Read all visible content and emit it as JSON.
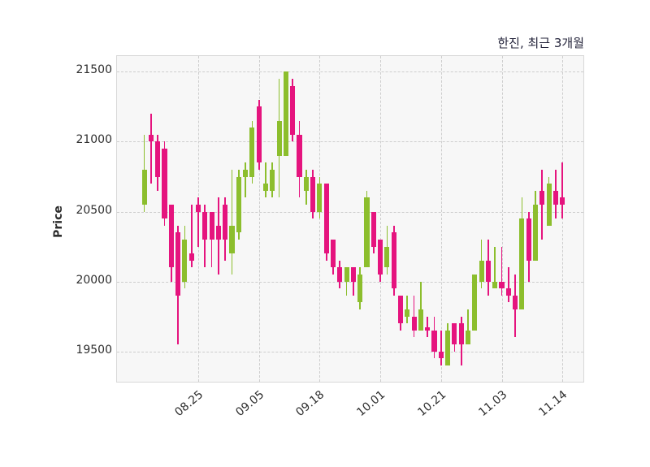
{
  "title": "한진, 최근 3개월",
  "chart_data": {
    "type": "candlestick",
    "title": "한진, 최근 3개월",
    "stock_name": "한진",
    "period_label": "최근 3개월",
    "ylabel": "Price",
    "yticks": [
      21500,
      21000,
      20500,
      20000,
      19500
    ],
    "ylim": [
      19283,
      21613
    ],
    "xticklabels": [
      "08.25",
      "09.05",
      "09.18",
      "10.01",
      "10.21",
      "11.03",
      "11.14"
    ],
    "xtick_indices": [
      8,
      17,
      26,
      35,
      44,
      53,
      62
    ],
    "grid": true,
    "legend": "none",
    "up_color": "#8cbe2d",
    "down_color": "#e5147e",
    "candles_ohlc": [
      [
        20550,
        21050,
        20500,
        20800
      ],
      [
        21050,
        21200,
        20700,
        21000
      ],
      [
        21000,
        21050,
        20650,
        20750
      ],
      [
        20950,
        21000,
        20400,
        20450
      ],
      [
        20550,
        20550,
        20000,
        20100
      ],
      [
        20350,
        20400,
        19550,
        19900
      ],
      [
        20000,
        20400,
        19950,
        20300
      ],
      [
        20200,
        20550,
        20100,
        20150
      ],
      [
        20550,
        20600,
        20250,
        20500
      ],
      [
        20500,
        20550,
        20100,
        20300
      ],
      [
        20500,
        20500,
        20100,
        20300
      ],
      [
        20400,
        20600,
        20050,
        20300
      ],
      [
        20550,
        20600,
        20150,
        20300
      ],
      [
        20200,
        20800,
        20050,
        20400
      ],
      [
        20350,
        20800,
        20300,
        20750
      ],
      [
        20750,
        20850,
        20600,
        20800
      ],
      [
        20750,
        21150,
        20700,
        21100
      ],
      [
        21250,
        21300,
        20800,
        20850
      ],
      [
        20650,
        20850,
        20600,
        20700
      ],
      [
        20650,
        20850,
        20600,
        20800
      ],
      [
        20900,
        21450,
        20600,
        21150
      ],
      [
        20900,
        21500,
        20900,
        21500
      ],
      [
        21400,
        21450,
        21000,
        21050
      ],
      [
        21050,
        21150,
        20600,
        20750
      ],
      [
        20650,
        20800,
        20550,
        20750
      ],
      [
        20750,
        20800,
        20450,
        20500
      ],
      [
        20500,
        20750,
        20450,
        20700
      ],
      [
        20700,
        20700,
        20150,
        20200
      ],
      [
        20300,
        20300,
        20050,
        20100
      ],
      [
        20100,
        20150,
        19950,
        20000
      ],
      [
        20000,
        20100,
        19900,
        20100
      ],
      [
        20100,
        20100,
        19900,
        20000
      ],
      [
        19850,
        20100,
        19800,
        20050
      ],
      [
        20100,
        20650,
        20100,
        20600
      ],
      [
        20500,
        20500,
        20200,
        20250
      ],
      [
        20300,
        20300,
        20000,
        20050
      ],
      [
        20100,
        20400,
        20050,
        20250
      ],
      [
        20350,
        20400,
        19900,
        19950
      ],
      [
        19900,
        19900,
        19650,
        19700
      ],
      [
        19750,
        19900,
        19700,
        19800
      ],
      [
        19750,
        19900,
        19600,
        19650
      ],
      [
        19650,
        20000,
        19650,
        19800
      ],
      [
        19670,
        19750,
        19600,
        19650
      ],
      [
        19650,
        19750,
        19450,
        19500
      ],
      [
        19500,
        19650,
        19400,
        19450
      ],
      [
        19400,
        19700,
        19400,
        19650
      ],
      [
        19700,
        19700,
        19500,
        19550
      ],
      [
        19700,
        19750,
        19400,
        19550
      ],
      [
        19550,
        19800,
        19550,
        19650
      ],
      [
        19650,
        20050,
        19650,
        20050
      ],
      [
        20000,
        20300,
        19950,
        20150
      ],
      [
        20150,
        20300,
        19900,
        20000
      ],
      [
        19950,
        20250,
        19950,
        20000
      ],
      [
        20000,
        20250,
        19900,
        19950
      ],
      [
        19950,
        20100,
        19850,
        19900
      ],
      [
        19900,
        20050,
        19600,
        19800
      ],
      [
        19800,
        20600,
        19800,
        20450
      ],
      [
        20450,
        20500,
        20000,
        20150
      ],
      [
        20150,
        20650,
        20150,
        20550
      ],
      [
        20650,
        20800,
        20300,
        20550
      ],
      [
        20400,
        20750,
        20400,
        20700
      ],
      [
        20650,
        20800,
        20450,
        20550
      ],
      [
        20600,
        20850,
        20450,
        20550
      ]
    ]
  }
}
